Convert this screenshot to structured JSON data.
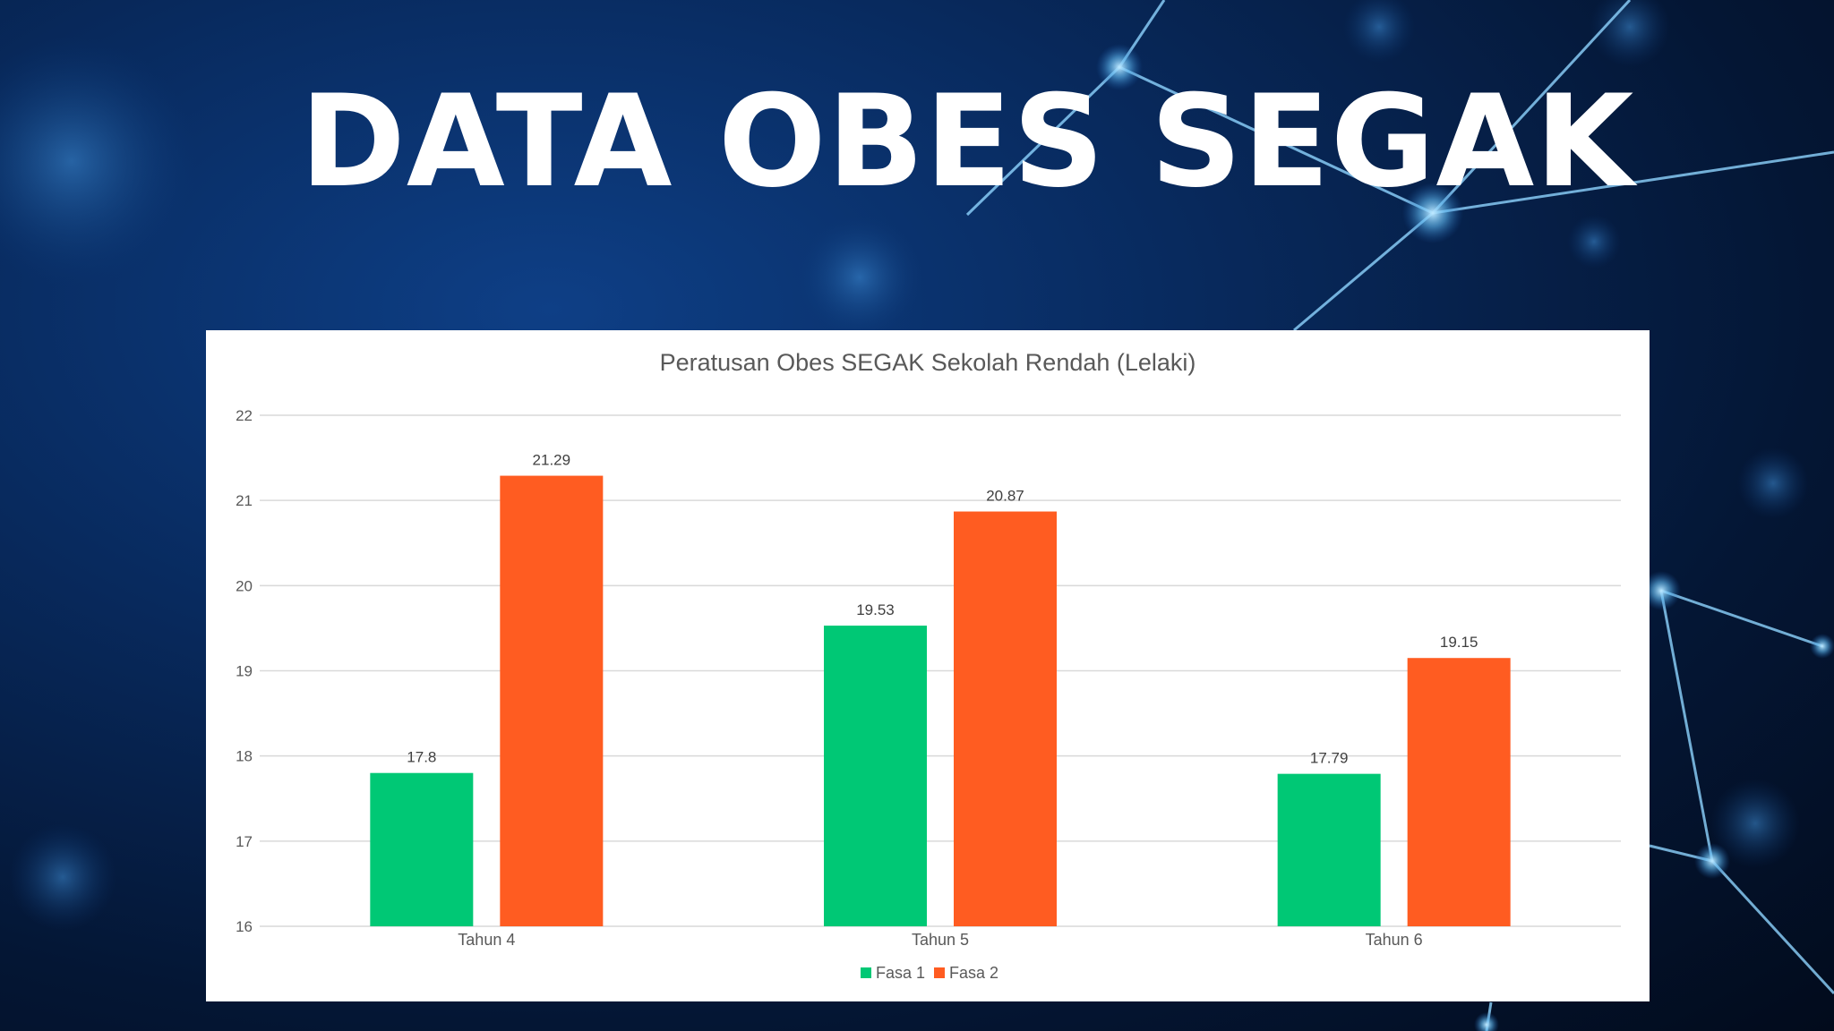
{
  "slide": {
    "title": "DATA OBES SEGAK"
  },
  "colors": {
    "fasa1": "#00c875",
    "fasa2": "#ff5c21",
    "grid": "#d9d9d9",
    "text": "#595959"
  },
  "chart_data": {
    "type": "bar",
    "title": "Peratusan Obes SEGAK Sekolah Rendah (Lelaki)",
    "categories": [
      "Tahun 4",
      "Tahun 5",
      "Tahun 6"
    ],
    "series": [
      {
        "name": "Fasa 1",
        "values": [
          17.8,
          19.53,
          17.79
        ]
      },
      {
        "name": "Fasa 2",
        "values": [
          21.29,
          20.87,
          19.15
        ]
      }
    ],
    "value_labels": [
      [
        "17.8",
        "19.53",
        "17.79"
      ],
      [
        "21.29",
        "20.87",
        "19.15"
      ]
    ],
    "ylim": [
      16,
      22
    ],
    "yticks": [
      "16",
      "17",
      "18",
      "19",
      "20",
      "21",
      "22"
    ],
    "grid": true,
    "legend": "bottom"
  }
}
